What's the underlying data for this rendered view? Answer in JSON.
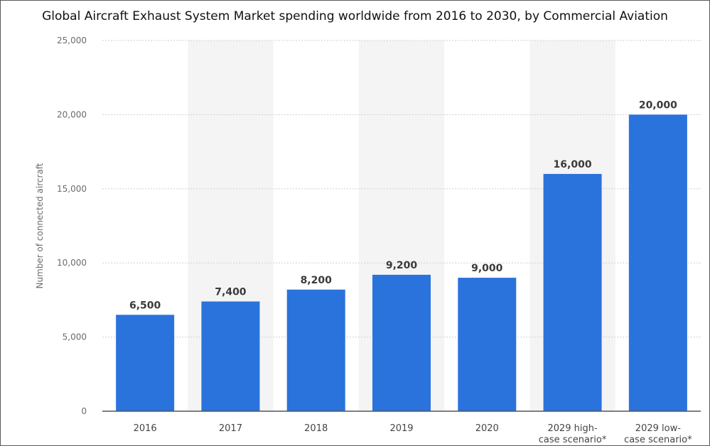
{
  "chart_data": {
    "type": "bar",
    "title": "Global Aircraft Exhaust System Market spending worldwide from 2016 to 2030, by Commercial Aviation",
    "ylabel": "Number of connected aircraft",
    "categories": [
      "2016",
      "2017",
      "2018",
      "2019",
      "2020",
      "2029 high-case scenario*",
      "2029 low-case scenario*"
    ],
    "category_lines": [
      [
        "2016"
      ],
      [
        "2017"
      ],
      [
        "2018"
      ],
      [
        "2019"
      ],
      [
        "2020"
      ],
      [
        "2029 high-",
        "case scenario*"
      ],
      [
        "2029 low-",
        "case scenario*"
      ]
    ],
    "values": [
      6500,
      7400,
      8200,
      9200,
      9000,
      16000,
      20000
    ],
    "value_labels": [
      "6,500",
      "7,400",
      "8,200",
      "9,200",
      "9,000",
      "16,000",
      "20,000"
    ],
    "ylim": [
      0,
      25000
    ],
    "yticks": [
      0,
      5000,
      10000,
      15000,
      20000,
      25000
    ],
    "ytick_labels": [
      "0",
      "5,000",
      "10,000",
      "15,000",
      "20,000",
      "25,000"
    ],
    "grid": true,
    "bar_color": "#2a73dc",
    "band_color": "#f4f4f4",
    "grid_color": "#cfcfcf",
    "axis_color": "#555555"
  }
}
